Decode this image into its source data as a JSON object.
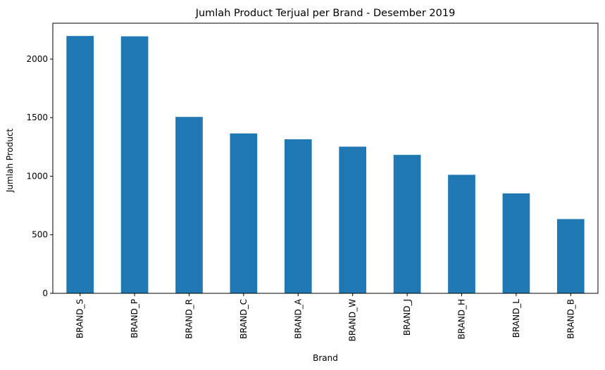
{
  "chart_data": {
    "type": "bar",
    "title": "Jumlah Product Terjual per Brand - Desember 2019",
    "xlabel": "Brand",
    "ylabel": "Jumlah Product",
    "categories": [
      "BRAND_S",
      "BRAND_P",
      "BRAND_R",
      "BRAND_C",
      "BRAND_A",
      "BRAND_W",
      "BRAND_J",
      "BRAND_H",
      "BRAND_L",
      "BRAND_B"
    ],
    "values": [
      2197,
      2194,
      1506,
      1365,
      1315,
      1252,
      1182,
      1012,
      853,
      634
    ],
    "ylim": [
      0,
      2306
    ],
    "yticks": [
      0,
      500,
      1000,
      1500,
      2000
    ],
    "grid": false,
    "legend": "none",
    "bar_color": "#1f77b4"
  }
}
